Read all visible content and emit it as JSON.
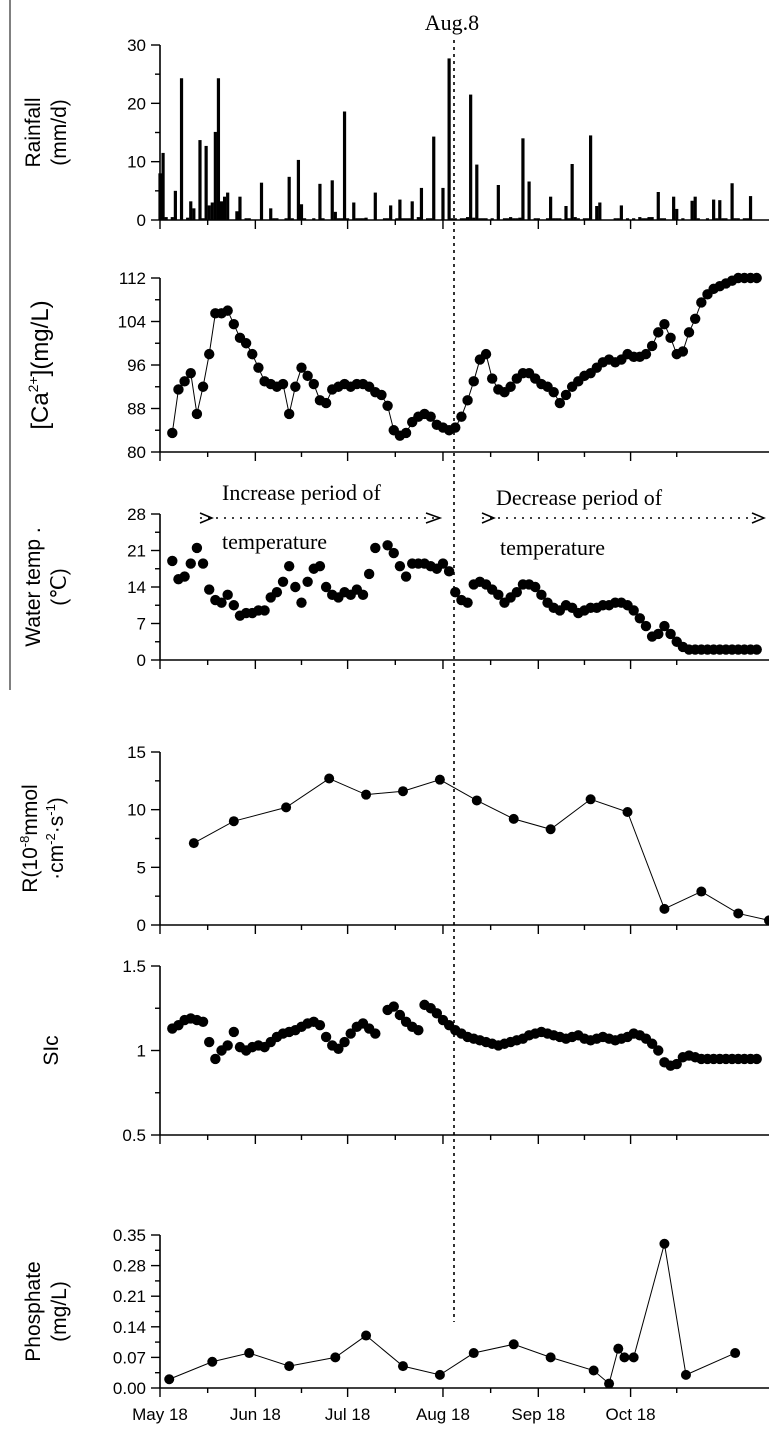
{
  "annotations": {
    "marker_label": "Aug.8",
    "increase_label_1": "Increase period of",
    "increase_label_2": "temperature",
    "decrease_label_1": "Decrease period of",
    "decrease_label_2": "temperature"
  },
  "chart_data": [
    {
      "type": "bar",
      "id": "rainfall",
      "ylabel_lines": [
        "Rainfall",
        "(mm/d)"
      ],
      "ylim": [
        0,
        30
      ],
      "yticks": [
        0,
        10,
        20,
        30
      ],
      "x": [
        0,
        1,
        2,
        4,
        5,
        7,
        9,
        10,
        11,
        13,
        14,
        15,
        16,
        17,
        18,
        19,
        20,
        21,
        22,
        25,
        26,
        28,
        29,
        33,
        36,
        37,
        38,
        41,
        42,
        43,
        45,
        46,
        47,
        50,
        52,
        53,
        56,
        57,
        58,
        59,
        60,
        61,
        63,
        64,
        65,
        66,
        67,
        70,
        73,
        74,
        75,
        77,
        78,
        79,
        80,
        81,
        82,
        84,
        85,
        87,
        88,
        89,
        92,
        94,
        95,
        96,
        98,
        99,
        100,
        101,
        102,
        103,
        104,
        105,
        106,
        108,
        110,
        112,
        113,
        114,
        115,
        116,
        117,
        118,
        120,
        122,
        123,
        126,
        127,
        128,
        129,
        130,
        132,
        133,
        134,
        135,
        136,
        138,
        139,
        140,
        142,
        143,
        148,
        149,
        150,
        152,
        154,
        156,
        157,
        158,
        159,
        160,
        162,
        163,
        164,
        167,
        168,
        170,
        173,
        174,
        175,
        178,
        180,
        181,
        182,
        183,
        184,
        186,
        187,
        188,
        190,
        191,
        192
      ],
      "values": [
        8.0,
        11.5,
        0.5,
        0.5,
        5.0,
        24.3,
        0.4,
        3.2,
        2.0,
        13.7,
        0.3,
        12.7,
        2.5,
        3.0,
        15.1,
        24.3,
        3.2,
        4.0,
        4.7,
        1.5,
        4.0,
        0.3,
        0.3,
        6.4,
        2.0,
        0.3,
        0.3,
        0.3,
        7.4,
        0.3,
        10.3,
        2.7,
        0.3,
        0.3,
        6.2,
        0.3,
        6.8,
        1.4,
        0.3,
        0.3,
        18.6,
        0.3,
        3.0,
        0.3,
        0.3,
        0.3,
        0.4,
        4.7,
        0.3,
        0.3,
        2.5,
        0.3,
        3.5,
        0.3,
        0.3,
        0.3,
        3.2,
        0.5,
        5.5,
        0.3,
        0.3,
        14.3,
        5.5,
        27.7,
        0.3,
        0.3,
        0.3,
        0.3,
        0.5,
        21.5,
        0.4,
        9.5,
        0.3,
        0.3,
        0.3,
        0.3,
        6.0,
        0.3,
        0.3,
        0.5,
        0.3,
        0.3,
        0.4,
        14.0,
        6.6,
        0.3,
        0.3,
        0.3,
        4.0,
        0.3,
        0.3,
        0.3,
        2.4,
        0.3,
        9.6,
        0.5,
        0.3,
        0.3,
        0.3,
        14.5,
        2.4,
        3.0,
        0.3,
        0.3,
        2.5,
        0.3,
        0.3,
        0.5,
        0.3,
        0.3,
        0.5,
        0.5,
        4.8,
        0.3,
        0.3,
        4.0,
        1.9,
        0.3,
        3.3,
        4.0,
        0.3,
        0.3,
        3.5,
        0.3,
        3.4,
        0.3,
        0.3,
        6.3,
        0.3,
        0.3,
        0.3,
        0.3,
        4.1
      ]
    },
    {
      "type": "scatter",
      "id": "calcium",
      "ylabel": "[Ca2+](mg/L)",
      "ylabel_main": "[Ca",
      "ylabel_sup": "2+",
      "ylabel_rest": "](mg/L)",
      "ylim": [
        80,
        112
      ],
      "yticks": [
        80,
        88,
        96,
        104,
        112
      ],
      "connect": true,
      "x": [
        4,
        6,
        8,
        10,
        12,
        14,
        16,
        18,
        20,
        22,
        24,
        26,
        28,
        30,
        32,
        34,
        36,
        38,
        40,
        42,
        44,
        46,
        48,
        50,
        52,
        54,
        56,
        58,
        60,
        62,
        64,
        66,
        68,
        70,
        72,
        74,
        76,
        78,
        80,
        82,
        84,
        86,
        88,
        90,
        92,
        94,
        96,
        98,
        100,
        102,
        104,
        106,
        108,
        110,
        112,
        114,
        116,
        118,
        120,
        122,
        124,
        126,
        128,
        130,
        132,
        134,
        136,
        138,
        140,
        142,
        144,
        146,
        148,
        150,
        152,
        154,
        156,
        158,
        160,
        162,
        164,
        166,
        168,
        170,
        172,
        174,
        176,
        178,
        180,
        182,
        184,
        186,
        188,
        190,
        192,
        194
      ],
      "values": [
        83.5,
        91.5,
        93.0,
        94.5,
        87.0,
        92.0,
        98.0,
        105.5,
        105.5,
        106.0,
        103.5,
        101.0,
        100.0,
        98.0,
        95.5,
        93.0,
        92.5,
        92.0,
        92.5,
        87.0,
        92.0,
        95.5,
        94.0,
        92.5,
        89.5,
        89.0,
        91.5,
        92.0,
        92.5,
        92.0,
        92.5,
        92.5,
        92.0,
        91.0,
        90.5,
        88.5,
        84.0,
        83.0,
        83.5,
        85.5,
        86.5,
        87.0,
        86.5,
        85.0,
        84.5,
        84.0,
        84.5,
        86.5,
        89.5,
        93.0,
        97.0,
        98.0,
        93.5,
        91.5,
        91.0,
        92.0,
        93.5,
        94.5,
        94.5,
        93.5,
        92.5,
        92.0,
        91.0,
        89.0,
        90.5,
        92.0,
        93.0,
        94.0,
        94.5,
        95.5,
        96.5,
        97.0,
        96.5,
        97.0,
        98.0,
        97.5,
        97.5,
        98.0,
        99.5,
        102.0,
        103.5,
        101.0,
        98.0,
        98.5,
        102.0,
        104.5,
        107.5,
        109.0,
        110.0,
        110.5,
        111.0,
        111.5,
        112.0,
        112.0,
        112.0,
        112.0
      ]
    },
    {
      "type": "scatter",
      "id": "water-temp",
      "ylabel_lines": [
        "Water temp .",
        "(℃)"
      ],
      "ylim": [
        0,
        28
      ],
      "yticks": [
        0,
        7,
        14,
        21,
        28
      ],
      "connect": false,
      "x": [
        4,
        6,
        8,
        10,
        12,
        14,
        16,
        18,
        20,
        22,
        24,
        26,
        28,
        30,
        32,
        34,
        36,
        38,
        40,
        42,
        44,
        46,
        48,
        50,
        52,
        54,
        56,
        58,
        60,
        62,
        64,
        66,
        68,
        70,
        74,
        76,
        78,
        80,
        82,
        84,
        86,
        88,
        90,
        92,
        94,
        96,
        98,
        100,
        102,
        104,
        106,
        108,
        110,
        112,
        114,
        116,
        118,
        120,
        122,
        124,
        126,
        128,
        130,
        132,
        134,
        136,
        138,
        140,
        142,
        144,
        146,
        148,
        150,
        152,
        154,
        156,
        158,
        160,
        162,
        164,
        166,
        168,
        170,
        172,
        174,
        176,
        178,
        180,
        182,
        184,
        186,
        188,
        190,
        192,
        194
      ],
      "values": [
        19.0,
        15.5,
        16.0,
        18.5,
        21.5,
        18.5,
        13.5,
        11.5,
        11.0,
        12.5,
        10.5,
        8.5,
        9.0,
        9.0,
        9.5,
        9.5,
        12.0,
        13.0,
        15.0,
        18.0,
        14.0,
        11.0,
        15.0,
        17.5,
        18.0,
        14.0,
        12.5,
        12.0,
        13.0,
        12.5,
        13.5,
        12.5,
        16.5,
        21.5,
        22.0,
        20.5,
        18.0,
        16.0,
        18.5,
        18.5,
        18.5,
        18.0,
        17.5,
        18.5,
        17.0,
        13.0,
        11.5,
        11.0,
        14.5,
        15.0,
        14.5,
        13.5,
        12.5,
        11.0,
        12.0,
        13.0,
        14.5,
        14.5,
        14.0,
        12.5,
        11.0,
        10.0,
        9.5,
        10.5,
        10.0,
        9.0,
        9.5,
        10.0,
        10.0,
        10.5,
        10.5,
        11.0,
        11.0,
        10.5,
        9.5,
        8.0,
        6.5,
        4.5,
        5.0,
        6.5,
        5.0,
        3.5,
        2.5,
        2.0,
        2.0,
        2.0,
        2.0,
        2.0,
        2.0,
        2.0,
        2.0,
        2.0,
        2.0,
        2.0,
        2.0
      ]
    },
    {
      "type": "line",
      "id": "rate",
      "ylabel_lines": [
        "R(10-8mmol",
        "·cm-2·s-1)"
      ],
      "ylim": [
        0,
        15
      ],
      "yticks": [
        0,
        5,
        10,
        15
      ],
      "x": [
        11,
        24,
        41,
        55,
        67,
        79,
        91,
        103,
        115,
        127,
        140,
        152,
        164,
        176,
        188,
        200
      ],
      "values": [
        7.1,
        9.0,
        10.2,
        12.7,
        11.3,
        11.6,
        12.6,
        10.8,
        9.2,
        8.3,
        10.9,
        9.8,
        1.4,
        2.9,
        1.0,
        0.4
      ]
    },
    {
      "type": "scatter",
      "id": "saturation",
      "ylabel": "SIc",
      "ylim": [
        0.5,
        1.5
      ],
      "yticks": [
        0.5,
        1.0,
        1.5
      ],
      "connect": false,
      "x": [
        4,
        6,
        8,
        10,
        12,
        14,
        16,
        18,
        20,
        22,
        24,
        26,
        28,
        30,
        32,
        34,
        36,
        38,
        40,
        42,
        44,
        46,
        48,
        50,
        52,
        54,
        56,
        58,
        60,
        62,
        64,
        66,
        68,
        70,
        74,
        76,
        78,
        80,
        82,
        84,
        86,
        88,
        90,
        92,
        94,
        96,
        98,
        100,
        102,
        104,
        106,
        108,
        110,
        112,
        114,
        116,
        118,
        120,
        122,
        124,
        126,
        128,
        130,
        132,
        134,
        136,
        138,
        140,
        142,
        144,
        146,
        148,
        150,
        152,
        154,
        156,
        158,
        160,
        162,
        164,
        166,
        168,
        170,
        172,
        174,
        176,
        178,
        180,
        182,
        184,
        186,
        188,
        190,
        192,
        194
      ],
      "values": [
        1.13,
        1.15,
        1.18,
        1.19,
        1.18,
        1.17,
        1.05,
        0.95,
        1.0,
        1.03,
        1.11,
        1.02,
        1.0,
        1.02,
        1.03,
        1.02,
        1.05,
        1.08,
        1.1,
        1.11,
        1.12,
        1.14,
        1.16,
        1.17,
        1.15,
        1.08,
        1.03,
        1.01,
        1.05,
        1.1,
        1.14,
        1.16,
        1.13,
        1.1,
        1.24,
        1.26,
        1.21,
        1.17,
        1.14,
        1.12,
        1.27,
        1.25,
        1.22,
        1.18,
        1.15,
        1.12,
        1.1,
        1.08,
        1.07,
        1.06,
        1.05,
        1.04,
        1.03,
        1.04,
        1.05,
        1.06,
        1.07,
        1.09,
        1.1,
        1.11,
        1.1,
        1.09,
        1.08,
        1.07,
        1.08,
        1.09,
        1.07,
        1.06,
        1.07,
        1.08,
        1.07,
        1.06,
        1.07,
        1.08,
        1.1,
        1.09,
        1.07,
        1.04,
        1.0,
        0.93,
        0.91,
        0.92,
        0.96,
        0.97,
        0.96,
        0.95,
        0.95,
        0.95,
        0.95,
        0.95,
        0.95,
        0.95,
        0.95,
        0.95,
        0.95
      ]
    },
    {
      "type": "line",
      "id": "phosphate",
      "ylabel_lines": [
        "Phosphate",
        "(mg/L)"
      ],
      "ylim": [
        0,
        0.35
      ],
      "yticks": [
        0.0,
        0.07,
        0.14,
        0.21,
        0.28,
        0.35
      ],
      "ytick_labels": [
        "0.00",
        "0.07",
        "0.14",
        "0.21",
        "0.28",
        "0.35"
      ],
      "x": [
        3,
        17,
        29,
        42,
        57,
        67,
        79,
        91,
        102,
        115,
        127,
        141,
        146,
        149,
        151,
        154,
        164,
        171,
        187
      ],
      "values": [
        0.02,
        0.06,
        0.08,
        0.05,
        0.07,
        0.12,
        0.05,
        0.03,
        0.08,
        0.1,
        0.07,
        0.04,
        0.01,
        0.09,
        0.07,
        0.07,
        0.33,
        0.03,
        0.08
      ]
    }
  ],
  "x_axis": {
    "tick_labels": [
      "May 18",
      "Jun 18",
      "Jul 18",
      "Aug 18",
      "Sep 18",
      "Oct 18"
    ],
    "tick_days": [
      0,
      31,
      61,
      92,
      123,
      153
    ],
    "marker_day": 82
  }
}
